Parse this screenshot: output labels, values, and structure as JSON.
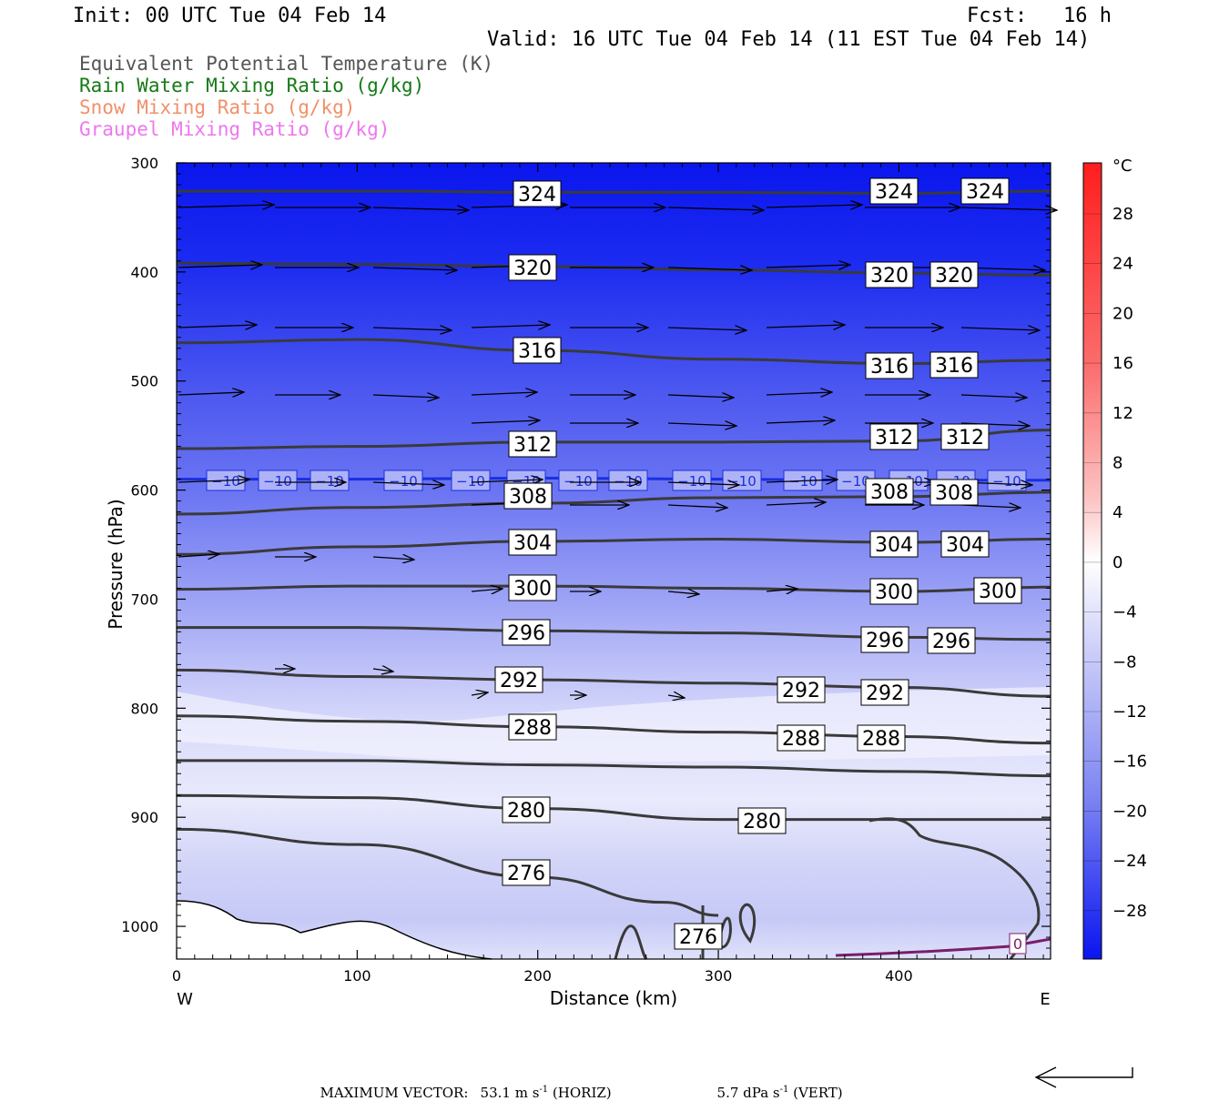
{
  "header": {
    "init": "Init: 00 UTC Tue 04 Feb 14",
    "fcst": "Fcst:   16 h",
    "valid": "Valid: 16 UTC Tue 04 Feb 14 (11 EST Tue 04 Feb 14)"
  },
  "legend": {
    "items": [
      {
        "label": "Equivalent Potential Temperature (K)",
        "color": "#555555"
      },
      {
        "label": "Rain Water Mixing Ratio (g/kg)",
        "color": "#157a15"
      },
      {
        "label": "Snow Mixing Ratio (g/kg)",
        "color": "#f0906a"
      },
      {
        "label": "Graupel Mixing Ratio (g/kg)",
        "color": "#ee77ee"
      }
    ]
  },
  "chart_data": {
    "type": "heatmap",
    "xlabel": "Distance (km)",
    "ylabel": "Pressure (hPa)",
    "x_range": [
      0,
      484
    ],
    "y_range": [
      300,
      1030
    ],
    "x_ticks": [
      0,
      100,
      200,
      300,
      400
    ],
    "y_ticks": [
      300,
      400,
      500,
      600,
      700,
      800,
      900,
      1000
    ],
    "x_end_labels": {
      "left": "W",
      "right": "E"
    },
    "colorbar": {
      "unit": "°C",
      "ticks": [
        28,
        24,
        20,
        16,
        12,
        8,
        4,
        0,
        -4,
        -8,
        -12,
        -16,
        -20,
        -24,
        -28
      ]
    },
    "temperature_contour": {
      "value": -10,
      "label": "−10",
      "color": "#1a2fe0",
      "points": [
        [
          0,
          590
        ],
        [
          100,
          590
        ],
        [
          200,
          589
        ],
        [
          300,
          590
        ],
        [
          400,
          591
        ],
        [
          484,
          591
        ]
      ]
    },
    "theta_e_contours": [
      {
        "value": 324,
        "label": "324",
        "points": [
          [
            0,
            326
          ],
          [
            120,
            326
          ],
          [
            200,
            327
          ],
          [
            300,
            327
          ],
          [
            400,
            328
          ],
          [
            484,
            326
          ]
        ]
      },
      {
        "value": 320,
        "label": "320",
        "points": [
          [
            0,
            392
          ],
          [
            100,
            393
          ],
          [
            200,
            395
          ],
          [
            300,
            398
          ],
          [
            400,
            401
          ],
          [
            484,
            403
          ]
        ]
      },
      {
        "value": 316,
        "label": "316",
        "points": [
          [
            0,
            465
          ],
          [
            100,
            462
          ],
          [
            200,
            472
          ],
          [
            300,
            480
          ],
          [
            400,
            484
          ],
          [
            484,
            481
          ]
        ]
      },
      {
        "value": 312,
        "label": "312",
        "points": [
          [
            0,
            562
          ],
          [
            100,
            560
          ],
          [
            200,
            556
          ],
          [
            300,
            556
          ],
          [
            400,
            555
          ],
          [
            484,
            545
          ]
        ]
      },
      {
        "value": 308,
        "label": "308",
        "points": [
          [
            0,
            622
          ],
          [
            100,
            616
          ],
          [
            200,
            612
          ],
          [
            300,
            607
          ],
          [
            400,
            606
          ],
          [
            484,
            602
          ]
        ]
      },
      {
        "value": 304,
        "label": "304",
        "points": [
          [
            0,
            659
          ],
          [
            100,
            652
          ],
          [
            200,
            647
          ],
          [
            300,
            645
          ],
          [
            400,
            648
          ],
          [
            484,
            645
          ]
        ]
      },
      {
        "value": 300,
        "label": "300",
        "points": [
          [
            0,
            691
          ],
          [
            100,
            688
          ],
          [
            200,
            688
          ],
          [
            300,
            690
          ],
          [
            400,
            693
          ],
          [
            484,
            689
          ]
        ]
      },
      {
        "value": 296,
        "label": "296",
        "points": [
          [
            0,
            726
          ],
          [
            100,
            726
          ],
          [
            200,
            729
          ],
          [
            300,
            731
          ],
          [
            400,
            735
          ],
          [
            484,
            737
          ]
        ]
      },
      {
        "value": 292,
        "label": "292",
        "points": [
          [
            0,
            765
          ],
          [
            100,
            771
          ],
          [
            200,
            774
          ],
          [
            300,
            777
          ],
          [
            400,
            781
          ],
          [
            484,
            789
          ]
        ]
      },
      {
        "value": 288,
        "label": "288",
        "points": [
          [
            0,
            807
          ],
          [
            100,
            812
          ],
          [
            200,
            817
          ],
          [
            300,
            822
          ],
          [
            400,
            826
          ],
          [
            484,
            832
          ]
        ]
      },
      {
        "value": 284,
        "label": "",
        "points": [
          [
            0,
            848
          ],
          [
            100,
            848
          ],
          [
            200,
            852
          ],
          [
            300,
            854
          ],
          [
            400,
            858
          ],
          [
            484,
            862
          ]
        ]
      },
      {
        "value": 280,
        "label": "280",
        "points": [
          [
            0,
            880
          ],
          [
            100,
            882
          ],
          [
            200,
            892
          ],
          [
            300,
            902
          ],
          [
            400,
            902
          ],
          [
            484,
            902
          ]
        ]
      },
      {
        "value": 276,
        "label": "276",
        "points": [
          [
            0,
            911
          ],
          [
            100,
            925
          ],
          [
            200,
            955
          ],
          [
            270,
            978
          ],
          [
            300,
            990
          ]
        ]
      }
    ],
    "wind_max_horiz": "53.1",
    "wind_max_vert": "5.7"
  },
  "labels": {
    "theta_e": [
      "324",
      "320",
      "316",
      "312",
      "308",
      "304",
      "300",
      "296",
      "292",
      "288",
      "280",
      "276"
    ],
    "temp_minus10": "−10",
    "zero": "0"
  },
  "footer": {
    "max_vector": "MAXIMUM VECTOR:",
    "horiz_value": "53.1 m s",
    "horiz_unit_end": " (HORIZ)",
    "vert_value": "5.7 dPa s",
    "vert_unit_end": " (VERT)",
    "exp": "-1"
  }
}
